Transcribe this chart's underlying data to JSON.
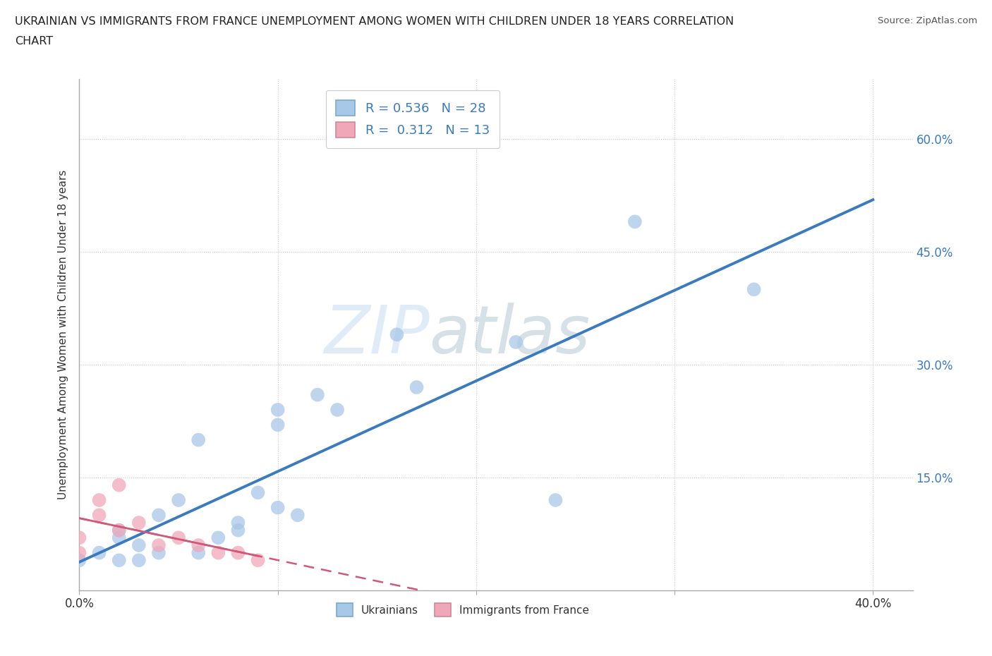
{
  "title_line1": "UKRAINIAN VS IMMIGRANTS FROM FRANCE UNEMPLOYMENT AMONG WOMEN WITH CHILDREN UNDER 18 YEARS CORRELATION",
  "title_line2": "CHART",
  "source": "Source: ZipAtlas.com",
  "ylabel": "Unemployment Among Women with Children Under 18 years",
  "watermark_zip": "ZIP",
  "watermark_atlas": "atlas",
  "xlim": [
    0.0,
    0.42
  ],
  "ylim": [
    0.0,
    0.68
  ],
  "x_ticks": [
    0.0,
    0.1,
    0.2,
    0.3,
    0.4
  ],
  "x_tick_labels": [
    "0.0%",
    "",
    "",
    "",
    "40.0%"
  ],
  "y_ticks": [
    0.0,
    0.15,
    0.3,
    0.45,
    0.6
  ],
  "y_tick_labels_right": [
    "",
    "15.0%",
    "30.0%",
    "45.0%",
    "60.0%"
  ],
  "ukrainian_R": 0.536,
  "ukrainian_N": 28,
  "france_R": 0.312,
  "france_N": 13,
  "ukrainian_color": "#a8c8e8",
  "france_color": "#f0a8b8",
  "trend_ukrainian_color": "#3a7abf",
  "trend_france_color": "#d05878",
  "ukrainians_x": [
    0.0,
    0.01,
    0.02,
    0.02,
    0.02,
    0.03,
    0.03,
    0.04,
    0.04,
    0.05,
    0.06,
    0.06,
    0.07,
    0.08,
    0.08,
    0.09,
    0.1,
    0.1,
    0.1,
    0.11,
    0.12,
    0.13,
    0.16,
    0.17,
    0.22,
    0.24,
    0.28,
    0.34
  ],
  "ukrainians_y": [
    0.04,
    0.05,
    0.04,
    0.07,
    0.08,
    0.04,
    0.06,
    0.05,
    0.1,
    0.12,
    0.05,
    0.2,
    0.07,
    0.08,
    0.09,
    0.13,
    0.22,
    0.24,
    0.11,
    0.1,
    0.26,
    0.24,
    0.34,
    0.27,
    0.33,
    0.12,
    0.49,
    0.4
  ],
  "france_x": [
    0.0,
    0.0,
    0.01,
    0.01,
    0.02,
    0.02,
    0.03,
    0.04,
    0.05,
    0.06,
    0.07,
    0.08,
    0.09
  ],
  "france_y": [
    0.05,
    0.07,
    0.1,
    0.12,
    0.08,
    0.14,
    0.09,
    0.06,
    0.07,
    0.06,
    0.05,
    0.05,
    0.04
  ],
  "background_color": "#ffffff",
  "grid_color": "#bbbbbb"
}
